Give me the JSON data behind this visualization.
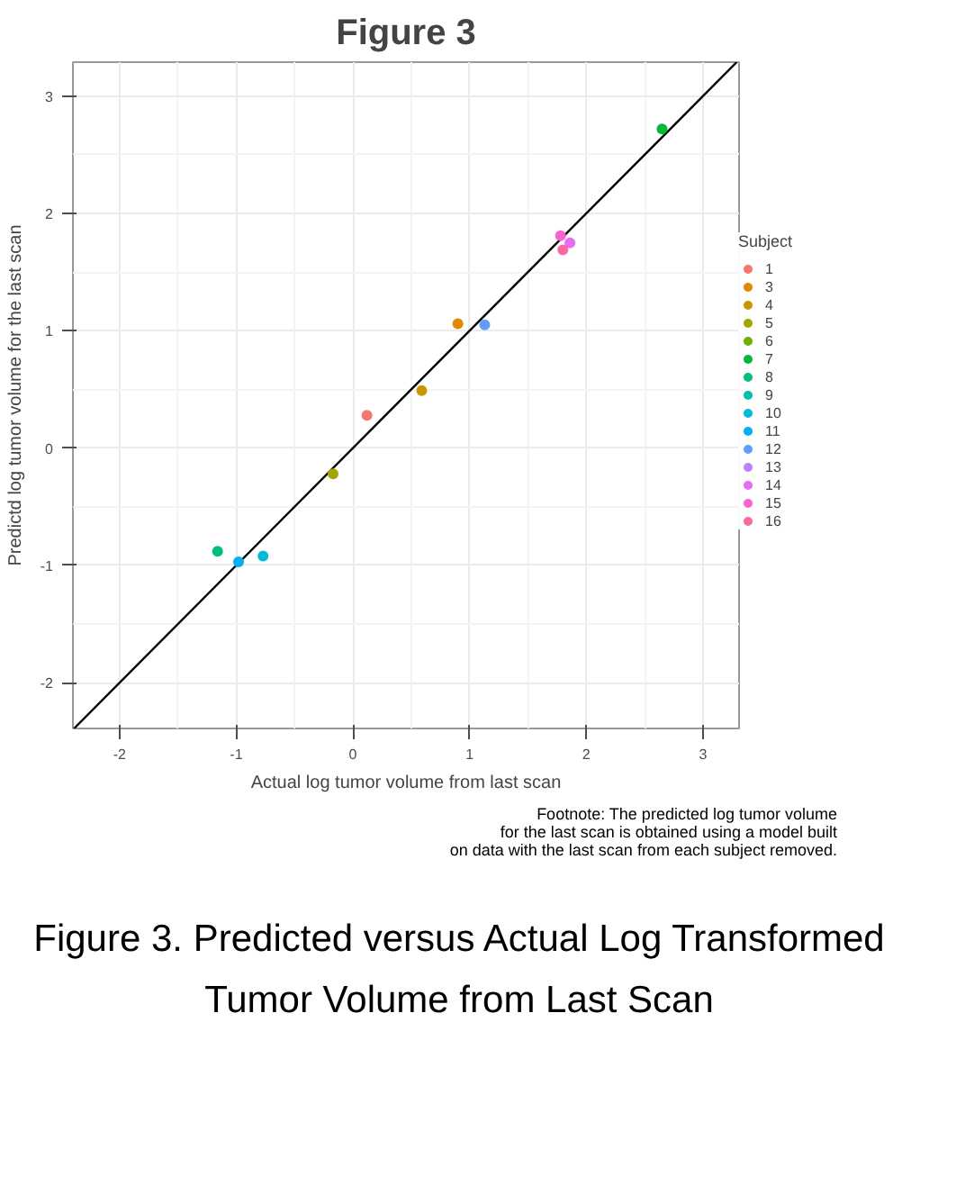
{
  "chart_data": {
    "type": "scatter",
    "title": "Figure 3",
    "xlabel": "Actual log tumor volume from last scan",
    "ylabel": "Predictd log tumor volume for the last scan",
    "legend_title": "Subject",
    "legend": "right",
    "grid": true,
    "marker": "circle",
    "xlim": [
      -2.4,
      3.31
    ],
    "ylim": [
      -2.39,
      3.29
    ],
    "xticks": [
      -2,
      -1,
      0,
      1,
      2,
      3
    ],
    "yticks": [
      -2,
      -1,
      0,
      1,
      2,
      3
    ],
    "annotations": [
      "Footnote: The predicted log tumor volume\nfor the last scan is obtained using a model built\non data with the last scan from each subject removed.",
      "Figure 3. Predicted versus Actual Log Transformed Tumor Volume from Last Scan"
    ],
    "series": [
      {
        "type": "line",
        "marker": "none",
        "color": "#000000",
        "x": [
          -2.39,
          3.29
        ],
        "values": [
          -2.39,
          3.29
        ]
      },
      {
        "name": "1",
        "color": "#F8766D",
        "x": [
          0.12
        ],
        "values": [
          0.28
        ]
      },
      {
        "name": "3",
        "color": "#E58700",
        "x": [
          0.9
        ],
        "values": [
          1.06
        ]
      },
      {
        "name": "4",
        "color": "#C99800",
        "x": [
          0.59
        ],
        "values": [
          0.49
        ]
      },
      {
        "name": "5",
        "color": "#A3A500",
        "x": [
          -0.17
        ],
        "values": [
          -0.22
        ]
      },
      {
        "name": "6",
        "color": "#6BB100",
        "x": [
          null
        ],
        "values": [
          null
        ]
      },
      {
        "name": "7",
        "color": "#00BA38",
        "x": [
          2.65
        ],
        "values": [
          2.72
        ]
      },
      {
        "name": "8",
        "color": "#00BF7D",
        "x": [
          -1.16
        ],
        "values": [
          -0.88
        ]
      },
      {
        "name": "9",
        "color": "#00C0AF",
        "x": [
          null
        ],
        "values": [
          null
        ]
      },
      {
        "name": "10",
        "color": "#00BCD8",
        "x": [
          -0.77
        ],
        "values": [
          -0.92
        ]
      },
      {
        "name": "11",
        "color": "#00B0F6",
        "x": [
          -0.98
        ],
        "values": [
          -0.97
        ]
      },
      {
        "name": "12",
        "color": "#619CFF",
        "x": [
          1.13
        ],
        "values": [
          1.05
        ]
      },
      {
        "name": "13",
        "color": "#B983FF",
        "x": [
          null
        ],
        "values": [
          null
        ]
      },
      {
        "name": "14",
        "color": "#E76BF3",
        "x": [
          1.86
        ],
        "values": [
          1.75
        ]
      },
      {
        "name": "15",
        "color": "#FD61D1",
        "x": [
          1.78
        ],
        "values": [
          1.81
        ]
      },
      {
        "name": "16",
        "color": "#FF67A4",
        "x": [
          1.8
        ],
        "values": [
          1.69
        ]
      }
    ]
  }
}
